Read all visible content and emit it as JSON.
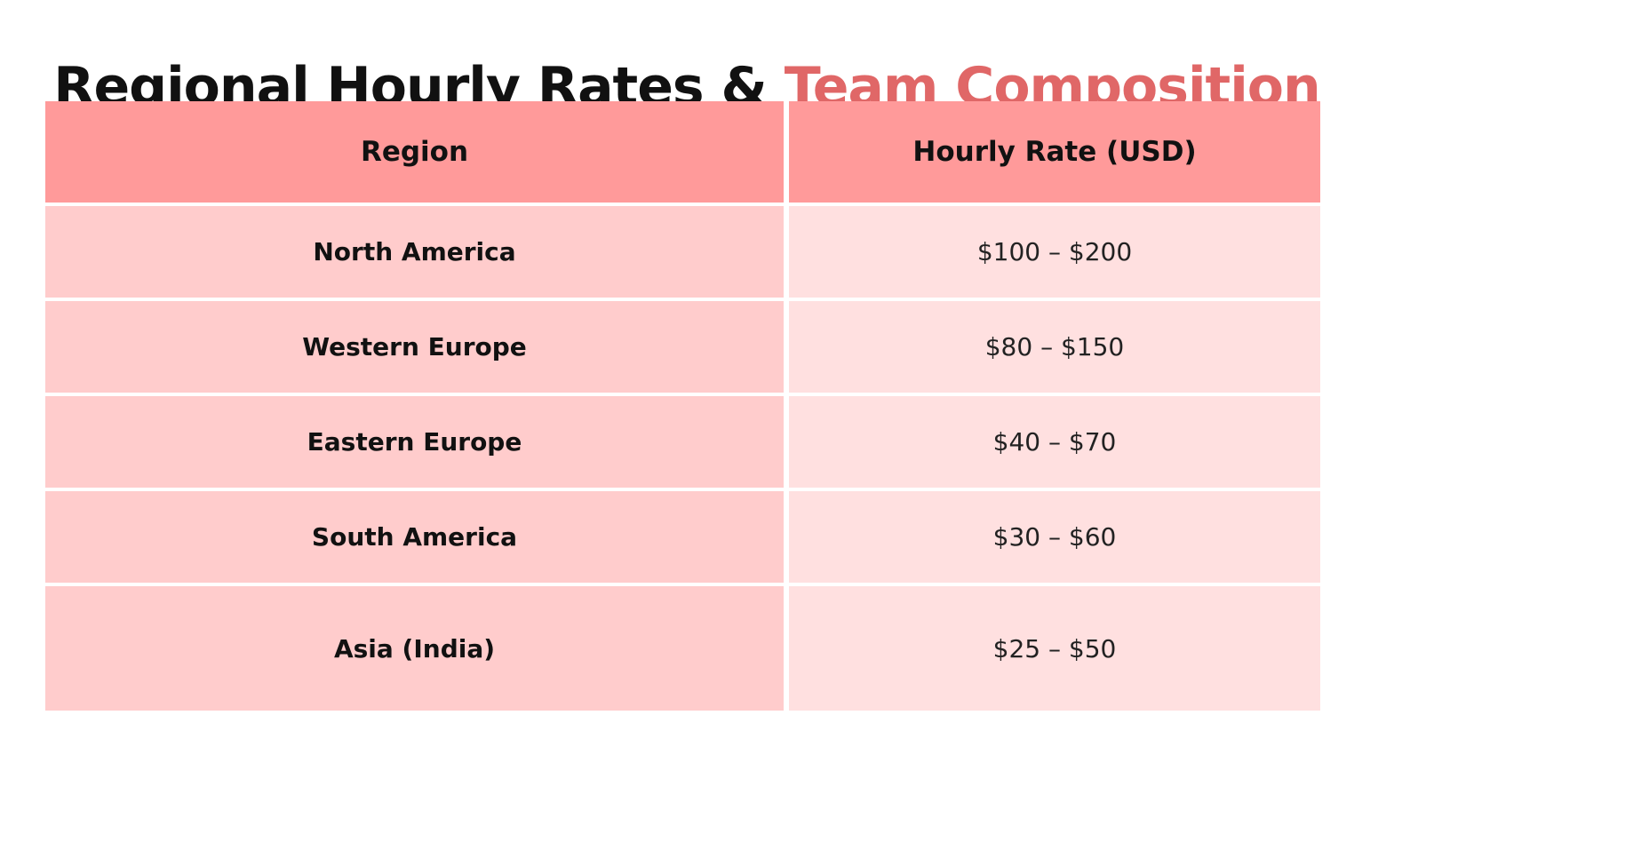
{
  "title": {
    "main": "Regional Hourly Rates & ",
    "accent": "Team Composition",
    "accent_color": "#e06767"
  },
  "table": {
    "columns": [
      "Region",
      "Hourly Rate (USD)"
    ],
    "rows": [
      {
        "region": "North America",
        "rate": "$100 – $200"
      },
      {
        "region": "Western Europe",
        "rate": "$80 – $150"
      },
      {
        "region": "Eastern Europe",
        "rate": "$40 – $70"
      },
      {
        "region": "South America",
        "rate": "$30 – $60"
      },
      {
        "region": "Asia (India)",
        "rate": "$25 – $50"
      }
    ],
    "colors": {
      "header": "#ff9a9a",
      "region_cell": "#ffcccc",
      "rate_cell": "#ffe0e0"
    }
  }
}
